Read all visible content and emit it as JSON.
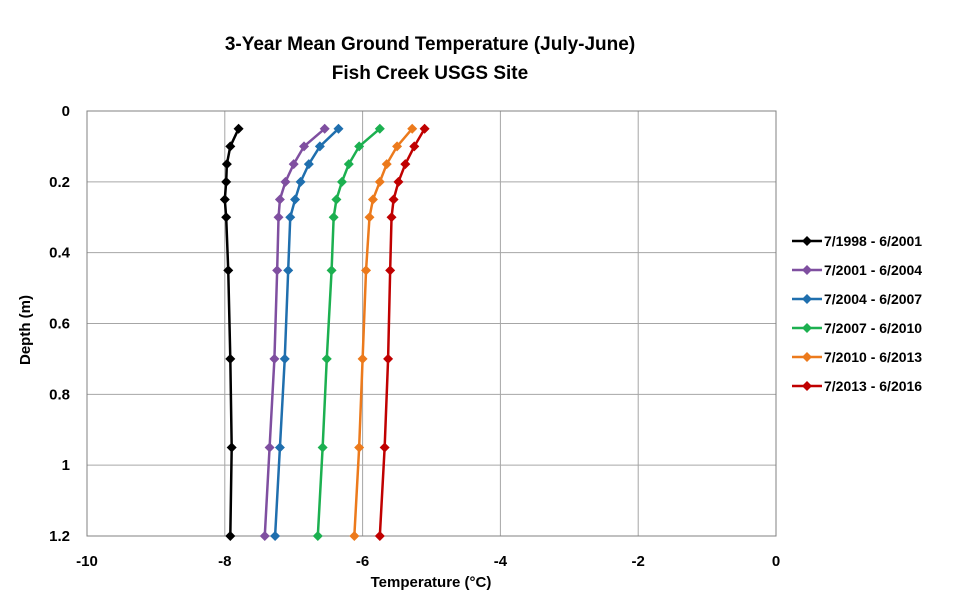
{
  "chart_data": {
    "type": "line",
    "title": "3-Year Mean Ground Temperature (July-June)",
    "subtitle": "Fish Creek USGS Site",
    "xlabel": "Temperature (°C)",
    "ylabel": "Depth (m)",
    "xlim": [
      -10,
      0
    ],
    "ylim": [
      0,
      1.2
    ],
    "y_inverted": true,
    "x_ticks": [
      "-10",
      "-8",
      "-6",
      "-4",
      "-2",
      "0"
    ],
    "y_ticks": [
      "0",
      "0.2",
      "0.4",
      "0.6",
      "0.8",
      "1",
      "1.2"
    ],
    "grid": true,
    "legend_position": "right",
    "depths": [
      0.05,
      0.1,
      0.15,
      0.2,
      0.25,
      0.3,
      0.45,
      0.7,
      0.95,
      1.2
    ],
    "series": [
      {
        "name": "7/1998 - 6/2001",
        "color": "#000000",
        "values": [
          -7.8,
          -7.92,
          -7.97,
          -7.98,
          -8.0,
          -7.98,
          -7.95,
          -7.92,
          -7.9,
          -7.92
        ]
      },
      {
        "name": "7/2001 - 6/2004",
        "color": "#7f4fa0",
        "values": [
          -6.55,
          -6.85,
          -7.0,
          -7.12,
          -7.2,
          -7.22,
          -7.24,
          -7.28,
          -7.35,
          -7.42
        ]
      },
      {
        "name": "7/2004 - 6/2007",
        "color": "#1f6fae",
        "values": [
          -6.35,
          -6.62,
          -6.78,
          -6.9,
          -6.98,
          -7.05,
          -7.08,
          -7.13,
          -7.2,
          -7.27
        ]
      },
      {
        "name": "7/2007 - 6/2010",
        "color": "#1cb050",
        "values": [
          -5.75,
          -6.05,
          -6.2,
          -6.3,
          -6.38,
          -6.42,
          -6.45,
          -6.52,
          -6.58,
          -6.65
        ]
      },
      {
        "name": "7/2010 - 6/2013",
        "color": "#ec7a1c",
        "values": [
          -5.28,
          -5.5,
          -5.65,
          -5.75,
          -5.85,
          -5.9,
          -5.95,
          -6.0,
          -6.05,
          -6.12
        ]
      },
      {
        "name": "7/2013 - 6/2016",
        "color": "#c00000",
        "values": [
          -5.1,
          -5.25,
          -5.38,
          -5.48,
          -5.55,
          -5.58,
          -5.6,
          -5.63,
          -5.68,
          -5.75
        ]
      }
    ]
  }
}
